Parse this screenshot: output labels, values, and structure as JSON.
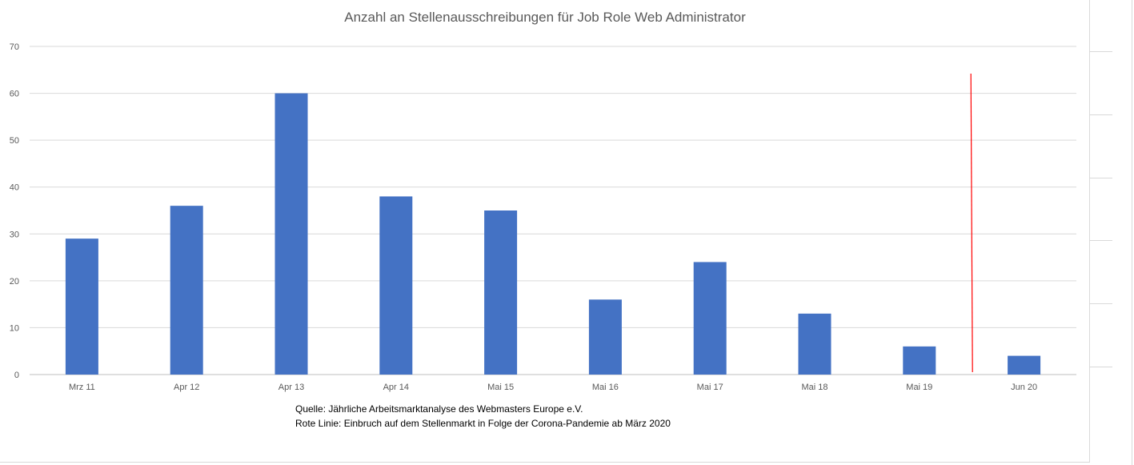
{
  "chart_data": {
    "type": "bar",
    "title": "Anzahl an Stellenausschreibungen für Job Role Web Administrator",
    "categories": [
      "Mrz 11",
      "Apr 12",
      "Apr 13",
      "Apr 14",
      "Mai 15",
      "Mai 16",
      "Mai 17",
      "Mai 18",
      "Mai 19",
      "Jun 20"
    ],
    "values": [
      29,
      36,
      60,
      38,
      35,
      16,
      24,
      13,
      6,
      4
    ],
    "ylim": [
      0,
      70
    ],
    "yticks": [
      "0",
      "10",
      "20",
      "30",
      "40",
      "50",
      "60",
      "70"
    ],
    "grid": true,
    "bar_color": "#4472c4",
    "marker_line": {
      "color": "#ff0000",
      "between_categories": [
        "Mai 19",
        "Jun 20"
      ],
      "description_shown": false
    }
  },
  "notes": {
    "source": "Quelle: Jährliche Arbeitsmarktanalyse des Webmasters Europe e.V.",
    "red_line": "Rote Linie: Einbruch auf dem Stellenmarkt in Folge der Corona-Pandemie ab März 2020"
  }
}
